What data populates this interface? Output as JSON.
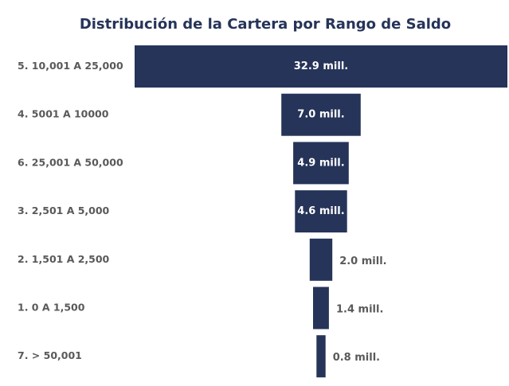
{
  "chart_data": {
    "type": "bar",
    "orientation": "funnel",
    "title": "Distribución de la Cartera por Rango de Saldo",
    "categories": [
      "5. 10,001 A 25,000",
      "4. 5001 A 10000",
      "6. 25,001 A 50,000",
      "3. 2,501 A 5,000",
      "2. 1,501 A 2,500",
      "1. 0 A 1,500",
      "7. > 50,001"
    ],
    "values": [
      32.9,
      7.0,
      4.9,
      4.6,
      2.0,
      1.4,
      0.8
    ],
    "value_labels": [
      "32.9 mill.",
      "7.0 mill.",
      "4.9 mill.",
      "4.6 mill.",
      "2.0 mill.",
      "1.4 mill.",
      "0.8 mill."
    ],
    "unit": "mill.",
    "legend": "none",
    "grid": false
  },
  "colors": {
    "bar": "#263459",
    "title": "#263459",
    "category_text": "#595959",
    "value_inside": "#ffffff",
    "value_outside": "#595959",
    "background": "#ffffff"
  }
}
